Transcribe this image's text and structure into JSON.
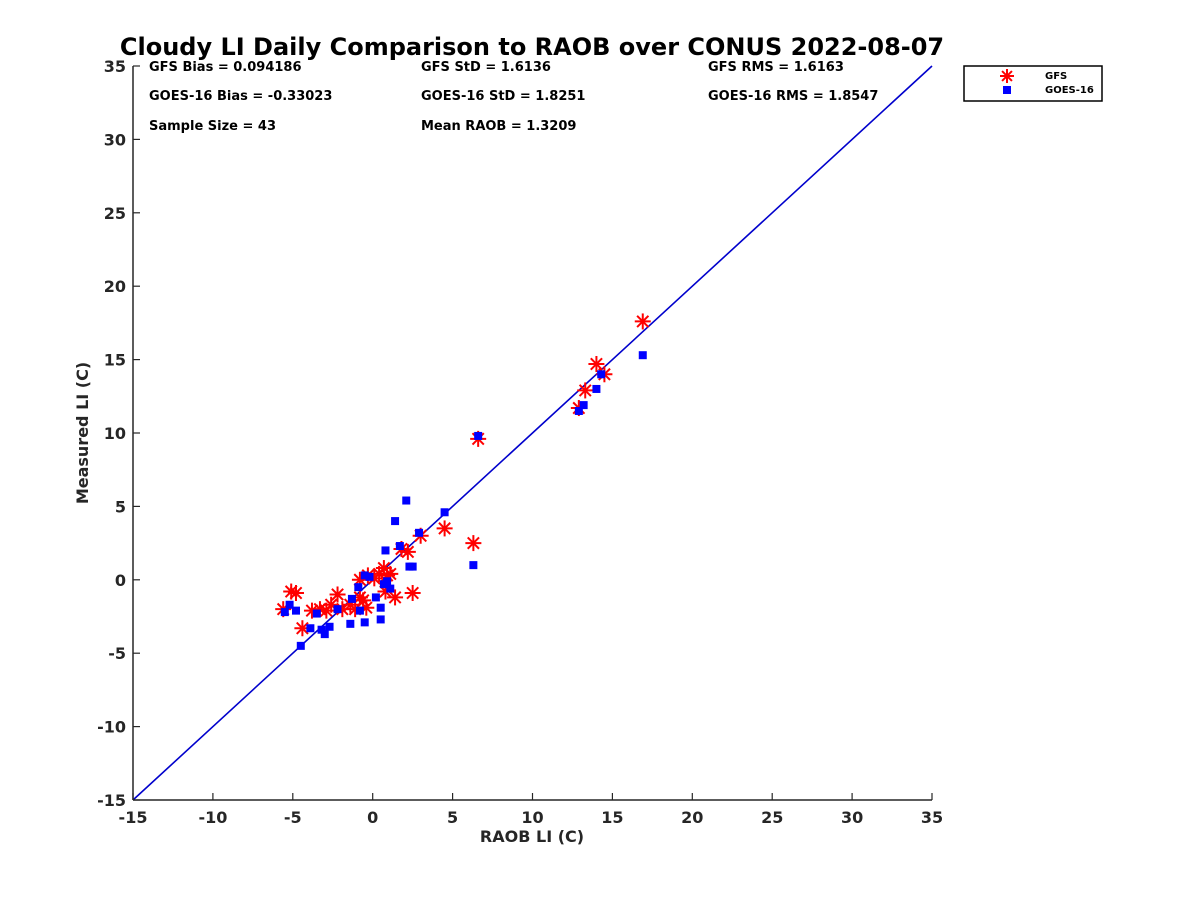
{
  "chart_data": {
    "type": "scatter",
    "title": "Cloudy LI Daily Comparison to RAOB over CONUS 2022-08-07",
    "xlabel": "RAOB LI (C)",
    "ylabel": "Measured LI (C)",
    "xlim": [
      -15,
      35
    ],
    "ylim": [
      -15,
      35
    ],
    "x_ticks": [
      -15,
      -10,
      -5,
      0,
      5,
      10,
      15,
      20,
      25,
      30,
      35
    ],
    "y_ticks": [
      -15,
      -10,
      -5,
      0,
      5,
      10,
      15,
      20,
      25,
      30,
      35
    ],
    "grid": false,
    "legend_position": "outside top-right",
    "reference_line": {
      "type": "one-to-one",
      "color": "#0000cc",
      "from": [
        -15,
        -15
      ],
      "to": [
        35,
        35
      ]
    },
    "stats": [
      "GFS Bias = 0.094186",
      "GFS StD = 1.6136",
      "GFS RMS = 1.6163",
      "GOES-16 Bias = -0.33023",
      "GOES-16 StD = 1.8251",
      "GOES-16 RMS = 1.8547",
      "Sample Size = 43",
      "Mean RAOB = 1.3209"
    ],
    "series": [
      {
        "name": "GFS",
        "marker": "asterisk",
        "color": "#ff0000",
        "points": [
          [
            -5.6,
            -2.0
          ],
          [
            -5.1,
            -0.8
          ],
          [
            -4.8,
            -0.9
          ],
          [
            -4.4,
            -3.3
          ],
          [
            -3.8,
            -2.1
          ],
          [
            -3.3,
            -2.0
          ],
          [
            -2.9,
            -2.1
          ],
          [
            -2.6,
            -1.7
          ],
          [
            -2.2,
            -1.0
          ],
          [
            -1.9,
            -2.0
          ],
          [
            -1.4,
            -1.7
          ],
          [
            -1.1,
            -2.0
          ],
          [
            -0.8,
            -1.2
          ],
          [
            -0.6,
            -1.4
          ],
          [
            -0.4,
            -1.9
          ],
          [
            -0.8,
            0.0
          ],
          [
            -0.3,
            0.3
          ],
          [
            0.1,
            0.1
          ],
          [
            0.4,
            0.4
          ],
          [
            0.7,
            0.8
          ],
          [
            0.9,
            0.3
          ],
          [
            1.1,
            0.4
          ],
          [
            0.8,
            -0.8
          ],
          [
            1.4,
            -1.2
          ],
          [
            1.8,
            2.1
          ],
          [
            2.2,
            1.9
          ],
          [
            2.5,
            -0.9
          ],
          [
            3.0,
            3.0
          ],
          [
            4.5,
            3.5
          ],
          [
            6.3,
            2.5
          ],
          [
            6.6,
            9.6
          ],
          [
            12.9,
            11.7
          ],
          [
            13.3,
            12.9
          ],
          [
            14.0,
            14.7
          ],
          [
            14.5,
            14.0
          ],
          [
            16.9,
            17.6
          ]
        ]
      },
      {
        "name": "GOES-16",
        "marker": "square",
        "color": "#0000ff",
        "points": [
          [
            -5.5,
            -2.2
          ],
          [
            -5.2,
            -1.7
          ],
          [
            -4.8,
            -2.1
          ],
          [
            -4.5,
            -4.5
          ],
          [
            -3.9,
            -3.3
          ],
          [
            -3.5,
            -2.3
          ],
          [
            -3.2,
            -3.4
          ],
          [
            -3.0,
            -3.7
          ],
          [
            -2.7,
            -3.2
          ],
          [
            -2.2,
            -2.0
          ],
          [
            -1.4,
            -3.0
          ],
          [
            -1.3,
            -1.3
          ],
          [
            -0.9,
            -0.5
          ],
          [
            -0.8,
            -2.1
          ],
          [
            -0.5,
            -2.9
          ],
          [
            -0.5,
            0.3
          ],
          [
            -0.2,
            0.2
          ],
          [
            0.2,
            -1.2
          ],
          [
            0.5,
            -1.9
          ],
          [
            0.5,
            -2.7
          ],
          [
            0.7,
            -0.3
          ],
          [
            0.8,
            2.0
          ],
          [
            0.9,
            -0.1
          ],
          [
            1.1,
            -0.6
          ],
          [
            1.4,
            4.0
          ],
          [
            1.7,
            2.3
          ],
          [
            2.1,
            5.4
          ],
          [
            2.3,
            0.9
          ],
          [
            2.5,
            0.9
          ],
          [
            2.9,
            3.2
          ],
          [
            4.5,
            4.6
          ],
          [
            6.3,
            1.0
          ],
          [
            6.6,
            9.8
          ],
          [
            12.9,
            11.5
          ],
          [
            13.2,
            11.9
          ],
          [
            14.0,
            13.0
          ],
          [
            14.3,
            14.0
          ],
          [
            16.9,
            15.3
          ]
        ]
      }
    ]
  }
}
